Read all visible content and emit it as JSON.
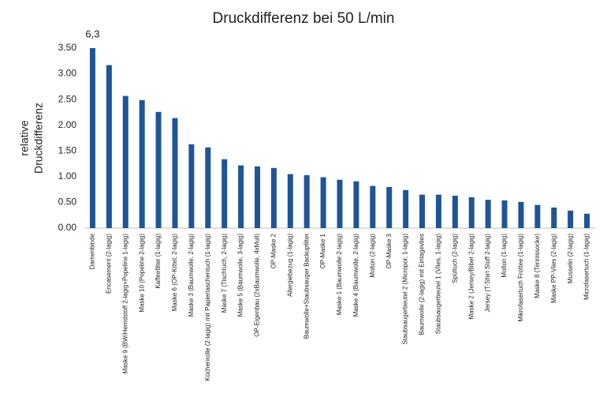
{
  "chart_data": {
    "type": "bar",
    "title": "Druckdifferenz bei 50 L/min",
    "y_label": [
      "relative",
      "Druckdifferenz"
    ],
    "color": "#1f5596",
    "grid": false,
    "categories": [
      "Damenbinde",
      "Encasement (2-lagig)",
      "Maske 9 (BW/Hemdstoff 2-lagig+Popeline 1-lagig)",
      "Maske 10 (Popeline 2-lagig)",
      "Kaffeefilter (1-lagig)",
      "Maske 6 (OP-Kittel, 2-lagig)",
      "Maske 3 (Baumwolle, 2-lagig)",
      "Küchenrolle (2-lagig) mit Papiertaschentuch (1-lagig)",
      "Maske 7 (Tischtuch, 2-lagig)",
      "Maske 5 (Baumwolle, 3-lagig)",
      "OP-Eigenbau (2xBaumwolle, 4xMull)",
      "OP-Maske 2",
      "Allergiebezug (1-lagig)",
      "Baumwolle+Staubsauger Backupfilter",
      "OP-Maske 1",
      "Maske 1 (Baumwolle 2-lagig)",
      "Maske 4 (Baumwolle, 2-lagig)",
      "Molton (2-lagig)",
      "OP-Maske 3",
      "Staubsaugerbeutel 2 (Micropor, 1-lagig)",
      "Baumwolle (2-lagig) mit Einlagevlies",
      "Staubsaugerbeutel 1 (Vlies, 1-lagig)",
      "Spültuch (2-lagig)",
      "Maske 2 (Jersey/Biber 2-lagig)",
      "Jersey (T-Shirt Stoff 2-lagig)",
      "Molton (1-lagig)",
      "Mikrofasertuch Frottee (1-lagig)",
      "Maske 8 (Tennissocke)",
      "Maske PP-Vlies (2-lagig)",
      "Musselin (2-lagig)",
      "Microfasertuch (1-lagig)"
    ],
    "values": [
      6.3,
      3.17,
      2.57,
      2.49,
      2.26,
      2.14,
      1.63,
      1.57,
      1.34,
      1.22,
      1.2,
      1.17,
      1.05,
      1.03,
      0.99,
      0.94,
      0.91,
      0.82,
      0.8,
      0.74,
      0.65,
      0.65,
      0.63,
      0.6,
      0.55,
      0.54,
      0.51,
      0.45,
      0.4,
      0.34,
      0.28
    ],
    "value_labels": [
      "6,3",
      null,
      null,
      null,
      null,
      null,
      null,
      null,
      null,
      null,
      null,
      null,
      null,
      null,
      null,
      null,
      null,
      null,
      null,
      null,
      null,
      null,
      null,
      null,
      null,
      null,
      null,
      null,
      null,
      null,
      null
    ],
    "ylim": [
      0,
      3.5
    ],
    "yticks": [
      {
        "value": 0,
        "label": "0.00"
      },
      {
        "value": 0.5,
        "label": "0.50"
      },
      {
        "value": 1,
        "label": "1.00"
      },
      {
        "value": 1.5,
        "label": "1.50"
      },
      {
        "value": 2,
        "label": "2.00"
      },
      {
        "value": 2.5,
        "label": "2.50"
      },
      {
        "value": 3,
        "label": "3.00"
      },
      {
        "value": 3.5,
        "label": "3.50"
      }
    ]
  }
}
